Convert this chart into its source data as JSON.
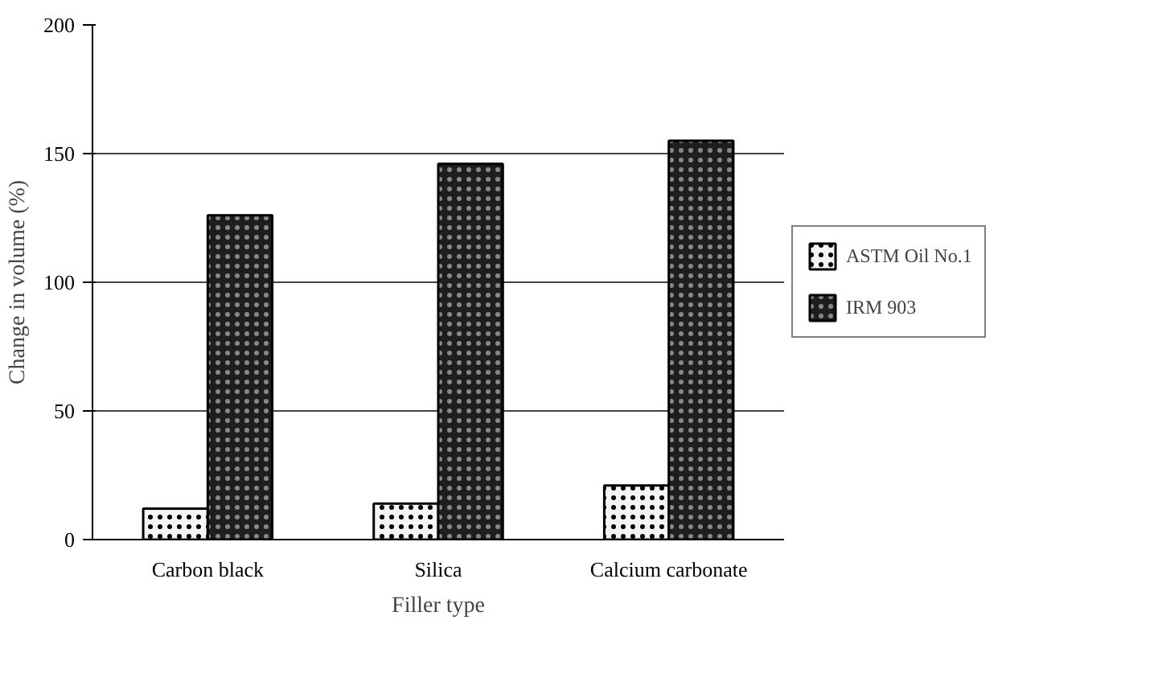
{
  "chart_data": {
    "type": "bar",
    "xlabel": "Filler type",
    "ylabel": "Change in volume (%)",
    "categories": [
      "Carbon black",
      "Silica",
      "Calcium carbonate"
    ],
    "series": [
      {
        "name": "ASTM Oil No.1",
        "color": "#f4f4f4",
        "values": [
          12,
          14,
          21
        ]
      },
      {
        "name": "IRM 903",
        "color": "#1e1e1e",
        "values": [
          126,
          146,
          155
        ]
      }
    ],
    "ylim": [
      0,
      200
    ],
    "yticks": [
      0,
      50,
      100,
      150,
      200
    ],
    "grid": "y",
    "legend": "right"
  }
}
